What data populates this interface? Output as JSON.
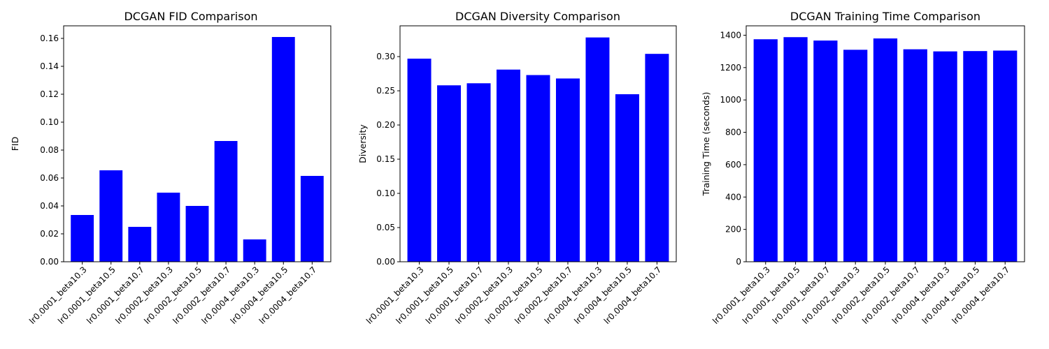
{
  "chart_data": [
    {
      "type": "bar",
      "title": "DCGAN FID Comparison",
      "xlabel": "",
      "ylabel": "FID",
      "categories": [
        "lr0.0001_beta10.3",
        "lr0.0001_beta10.5",
        "lr0.0001_beta10.7",
        "lr0.0002_beta10.3",
        "lr0.0002_beta10.5",
        "lr0.0002_beta10.7",
        "lr0.0004_beta10.3",
        "lr0.0004_beta10.5",
        "lr0.0004_beta10.7"
      ],
      "values": [
        0.0335,
        0.0655,
        0.025,
        0.0495,
        0.04,
        0.0865,
        0.016,
        0.161,
        0.0615
      ],
      "ylim": [
        0,
        0.169
      ],
      "yticks": [
        0.0,
        0.02,
        0.04,
        0.06,
        0.08,
        0.1,
        0.12,
        0.14,
        0.16
      ],
      "ytick_labels": [
        "0.00",
        "0.02",
        "0.04",
        "0.06",
        "0.08",
        "0.10",
        "0.12",
        "0.14",
        "0.16"
      ],
      "color": "#0000ff",
      "grid": false
    },
    {
      "type": "bar",
      "title": "DCGAN Diversity Comparison",
      "xlabel": "",
      "ylabel": "Diversity",
      "categories": [
        "lr0.0001_beta10.3",
        "lr0.0001_beta10.5",
        "lr0.0001_beta10.7",
        "lr0.0002_beta10.3",
        "lr0.0002_beta10.5",
        "lr0.0002_beta10.7",
        "lr0.0004_beta10.3",
        "lr0.0004_beta10.5",
        "lr0.0004_beta10.7"
      ],
      "values": [
        0.297,
        0.258,
        0.261,
        0.281,
        0.273,
        0.268,
        0.328,
        0.245,
        0.304
      ],
      "ylim": [
        0,
        0.345
      ],
      "yticks": [
        0.0,
        0.05,
        0.1,
        0.15,
        0.2,
        0.25,
        0.3
      ],
      "ytick_labels": [
        "0.00",
        "0.05",
        "0.10",
        "0.15",
        "0.20",
        "0.25",
        "0.30"
      ],
      "color": "#0000ff",
      "grid": false
    },
    {
      "type": "bar",
      "title": "DCGAN Training Time Comparison",
      "xlabel": "",
      "ylabel": "Training Time (seconds)",
      "categories": [
        "lr0.0001_beta10.3",
        "lr0.0001_beta10.5",
        "lr0.0001_beta10.7",
        "lr0.0002_beta10.3",
        "lr0.0002_beta10.5",
        "lr0.0002_beta10.7",
        "lr0.0004_beta10.3",
        "lr0.0004_beta10.5",
        "lr0.0004_beta10.7"
      ],
      "values": [
        1375,
        1388,
        1367,
        1310,
        1380,
        1313,
        1300,
        1302,
        1305
      ],
      "ylim": [
        0,
        1458
      ],
      "yticks": [
        0,
        200,
        400,
        600,
        800,
        1000,
        1200,
        1400
      ],
      "ytick_labels": [
        "0",
        "200",
        "400",
        "600",
        "800",
        "1000",
        "1200",
        "1400"
      ],
      "color": "#0000ff",
      "grid": false
    }
  ]
}
